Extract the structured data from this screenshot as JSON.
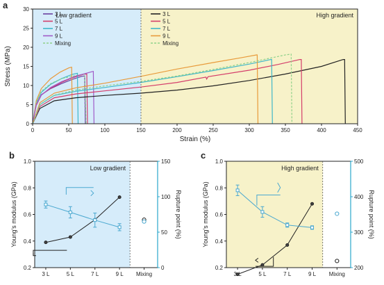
{
  "colors": {
    "low_bg": "#d6ecfa",
    "high_bg": "#f7f2c9",
    "axis": "#222222",
    "right_axis": "#2aa6cc",
    "modulus": "#222222",
    "rupture": "#4aa8d0"
  },
  "chart_data": [
    {
      "panel_label": "a",
      "type": "line",
      "xlabel": "Strain (%)",
      "ylabel": "Stress (MPa)",
      "xlim": [
        0,
        450
      ],
      "ylim": [
        0,
        30
      ],
      "xticks": [
        0,
        50,
        100,
        150,
        200,
        250,
        300,
        350,
        400,
        450
      ],
      "yticks": [
        0,
        5,
        10,
        15,
        20,
        25,
        30
      ],
      "regions": [
        {
          "label": "Low gradient",
          "x0": 0,
          "x1": 150,
          "color": "#d6ecfa"
        },
        {
          "label": "High gradient",
          "x0": 150,
          "x1": 450,
          "color": "#f7f2c9"
        }
      ],
      "divider_x": 150,
      "legend_low": [
        "3 L",
        "5 L",
        "7 L",
        "9 L",
        "Mixing"
      ],
      "legend_high": [
        "3 L",
        "5 L",
        "7 L",
        "9 L",
        "Mixing"
      ],
      "series": [
        {
          "name": "3 L",
          "group": "low",
          "color": "#6b3fa0",
          "dash": false,
          "x": [
            0,
            5,
            12,
            25,
            40,
            55,
            68,
            72,
            73
          ],
          "y": [
            0,
            5,
            7.6,
            9.2,
            10.5,
            11.6,
            12.4,
            12.5,
            0
          ]
        },
        {
          "name": "5 L",
          "group": "low",
          "color": "#d43d6a",
          "dash": false,
          "x": [
            0,
            5,
            12,
            25,
            40,
            55,
            70,
            75,
            76
          ],
          "y": [
            0,
            4.8,
            7.5,
            9.3,
            10.8,
            12,
            12.9,
            13,
            0
          ]
        },
        {
          "name": "7 L",
          "group": "low",
          "color": "#3fb7c9",
          "dash": false,
          "x": [
            0,
            5,
            12,
            25,
            40,
            55,
            62,
            63
          ],
          "y": [
            0,
            5.5,
            8.2,
            10.3,
            11.8,
            12.9,
            13.2,
            0
          ]
        },
        {
          "name": "9 L",
          "group": "low",
          "color": "#e89a3a",
          "dash": false,
          "x": [
            0,
            5,
            12,
            25,
            38,
            50,
            54,
            55
          ],
          "y": [
            0,
            6,
            9.2,
            11.8,
            13.5,
            14.6,
            14.8,
            0
          ]
        },
        {
          "name": "Mixing",
          "group": "low",
          "color": "#8fd18a",
          "dash": true,
          "x": [
            0,
            5,
            12,
            25,
            40,
            60,
            72,
            74
          ],
          "y": [
            0,
            5.5,
            8.5,
            10.5,
            11.8,
            12.6,
            13,
            0
          ]
        },
        {
          "name": "9 L (violet)",
          "group": "low",
          "color": "#a05ac8",
          "dash": false,
          "x": [
            0,
            5,
            12,
            25,
            40,
            60,
            82,
            84,
            85
          ],
          "y": [
            0,
            5,
            7.5,
            9.5,
            11,
            12.5,
            13.6,
            13.7,
            0
          ]
        },
        {
          "name": "3 L",
          "group": "high",
          "color": "#222222",
          "dash": false,
          "x": [
            0,
            10,
            30,
            60,
            100,
            150,
            200,
            250,
            300,
            350,
            400,
            430,
            432,
            433
          ],
          "y": [
            0,
            4,
            6,
            6.8,
            7.4,
            8,
            8.8,
            9.9,
            11.3,
            13,
            15,
            16.8,
            16.8,
            0
          ]
        },
        {
          "name": "5 L",
          "group": "high",
          "color": "#d43d6a",
          "dash": false,
          "x": [
            0,
            10,
            30,
            60,
            100,
            150,
            200,
            240,
            241,
            243,
            300,
            340,
            370,
            372,
            373
          ],
          "y": [
            0,
            4.5,
            6.8,
            7.8,
            8.6,
            9.6,
            10.8,
            12.2,
            11.7,
            12.3,
            14,
            15.5,
            16.8,
            16.8,
            0
          ]
        },
        {
          "name": "7 L",
          "group": "high",
          "color": "#3fb7c9",
          "dash": false,
          "x": [
            0,
            10,
            30,
            60,
            100,
            150,
            200,
            250,
            300,
            330,
            331,
            332
          ],
          "y": [
            0,
            5,
            7.4,
            8.5,
            9.5,
            10.8,
            12.3,
            13.9,
            15.6,
            16.8,
            16.8,
            0
          ]
        },
        {
          "name": "9 L",
          "group": "high",
          "color": "#e89a3a",
          "dash": false,
          "x": [
            0,
            10,
            30,
            60,
            100,
            150,
            200,
            250,
            290,
            310,
            311,
            312
          ],
          "y": [
            0,
            5.5,
            8,
            9.4,
            10.6,
            12.4,
            14.3,
            16,
            17.3,
            18,
            18,
            0
          ]
        },
        {
          "name": "Mixing",
          "group": "high",
          "color": "#8fd18a",
          "dash": true,
          "x": [
            0,
            10,
            30,
            60,
            100,
            150,
            200,
            250,
            300,
            350,
            358,
            359
          ],
          "y": [
            0,
            5,
            7.5,
            8.8,
            9.9,
            11.1,
            12.5,
            14.2,
            16,
            18,
            18.2,
            0
          ]
        }
      ]
    },
    {
      "panel_label": "b",
      "type": "line",
      "title": "Low gradient",
      "categories": [
        "3 L",
        "5 L",
        "7 L",
        "9 L",
        "Mixing"
      ],
      "ylabel": "Young's modulus (GPa)",
      "ylabel_right": "Rupture point (%)",
      "ylim": [
        0.2,
        1.0
      ],
      "yticks": [
        0.2,
        0.4,
        0.6,
        0.8,
        1.0
      ],
      "ylim_right": [
        0,
        150
      ],
      "yticks_right": [
        0,
        50,
        100,
        150
      ],
      "modulus": [
        0.39,
        0.43,
        0.56,
        0.73
      ],
      "modulus_mixing": 0.56,
      "rupture": [
        89,
        78,
        67,
        57
      ],
      "rupture_err": [
        5,
        8,
        10,
        5
      ],
      "rupture_mixing": 65
    },
    {
      "panel_label": "c",
      "type": "line",
      "title": "High gradient",
      "categories": [
        "3 L",
        "5 L",
        "7 L",
        "9 L",
        "Mixing"
      ],
      "ylabel": "Young's modulus (GPa)",
      "ylabel_right": "Rupture point (%)",
      "ylim": [
        0.2,
        1.0
      ],
      "yticks": [
        0.2,
        0.4,
        0.6,
        0.8,
        1.0
      ],
      "ylim_right": [
        200,
        500
      ],
      "yticks_right": [
        200,
        300,
        400,
        500
      ],
      "modulus": [
        0.15,
        0.22,
        0.37,
        0.68
      ],
      "modulus_mixing": 0.25,
      "rupture": [
        418,
        357,
        320,
        313
      ],
      "rupture_err": [
        15,
        15,
        6,
        5
      ],
      "rupture_mixing": 352
    }
  ]
}
